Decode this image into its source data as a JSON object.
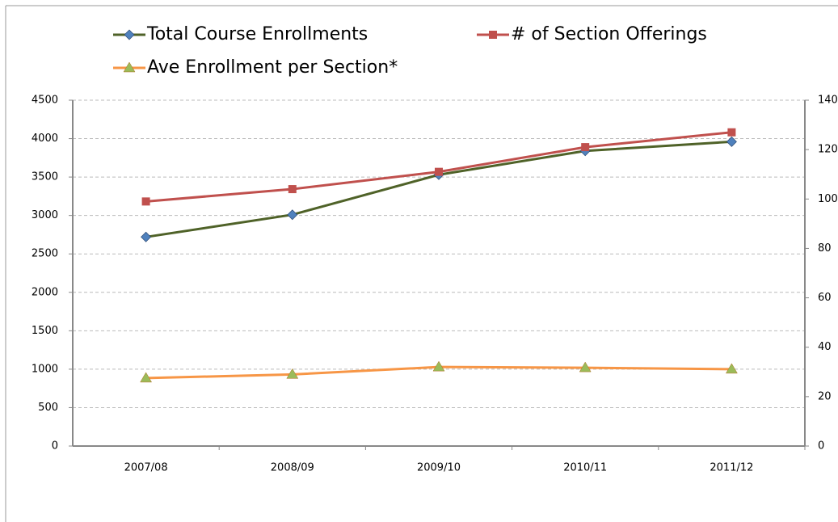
{
  "chart_data": {
    "type": "line",
    "categories": [
      "2007/08",
      "2008/09",
      "2009/10",
      "2010/11",
      "2011/12"
    ],
    "series": [
      {
        "name": "Total Course Enrollments",
        "color": "#4f6228",
        "marker_color": "#4f81bd",
        "marker": "diamond",
        "values": [
          2720,
          3010,
          3530,
          3840,
          3960
        ]
      },
      {
        "name": "# of Section Offerings",
        "color": "#c0504d",
        "marker_color": "#c0504d",
        "marker": "square",
        "axis": "y2",
        "values": [
          99,
          104,
          111,
          121,
          127
        ]
      },
      {
        "name": "Ave Enrollment per Section*",
        "color": "#f79646",
        "marker_color": "#9bbb59",
        "marker": "triangle",
        "axis": "y2",
        "values": [
          27.5,
          29,
          32,
          31.7,
          31.1
        ]
      }
    ],
    "ylim": [
      0,
      4500
    ],
    "yticks": [
      0,
      500,
      1000,
      1500,
      2000,
      2500,
      3000,
      3500,
      4000,
      4500
    ],
    "y2lim": [
      0,
      140
    ],
    "y2ticks": [
      0,
      20,
      40,
      60,
      80,
      100,
      120,
      140
    ],
    "grid": true
  }
}
